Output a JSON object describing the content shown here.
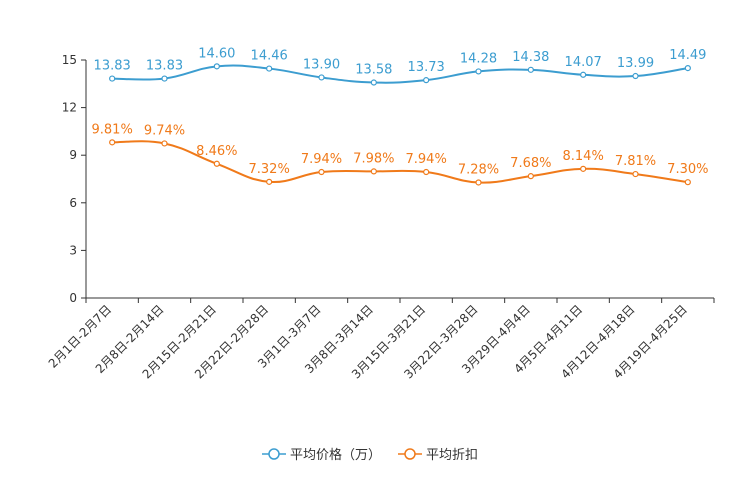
{
  "chart_data": {
    "type": "line",
    "title": "",
    "xlabel": "",
    "ylabel": "",
    "ylim": [
      0,
      15
    ],
    "yticks": [
      0,
      3,
      6,
      9,
      12,
      15
    ],
    "grid": false,
    "legend_position": "bottom",
    "categories": [
      "2月1日-2月7日",
      "2月8日-2月14日",
      "2月15日-2月21日",
      "2月22日-2月28日",
      "3月1日-3月7日",
      "3月8日-3月14日",
      "3月15日-3月21日",
      "3月22日-3月28日",
      "3月29日-4月4日",
      "4月5日-4月11日",
      "4月12日-4月18日",
      "4月19日-4月25日"
    ],
    "series": [
      {
        "name": "平均价格（万）",
        "color": "#3c9dd0",
        "values": [
          13.83,
          13.83,
          14.6,
          14.46,
          13.9,
          13.58,
          13.73,
          14.28,
          14.38,
          14.07,
          13.99,
          14.49
        ],
        "labels": [
          "13.83",
          "13.83",
          "14.60",
          "14.46",
          "13.90",
          "13.58",
          "13.73",
          "14.28",
          "14.38",
          "14.07",
          "13.99",
          "14.49"
        ]
      },
      {
        "name": "平均折扣",
        "color": "#f07a1a",
        "values": [
          9.81,
          9.74,
          8.46,
          7.32,
          7.94,
          7.98,
          7.94,
          7.28,
          7.68,
          8.14,
          7.81,
          7.3
        ],
        "labels": [
          "9.81%",
          "9.74%",
          "8.46%",
          "7.32%",
          "7.94%",
          "7.98%",
          "7.94%",
          "7.28%",
          "7.68%",
          "8.14%",
          "7.81%",
          "7.30%"
        ]
      }
    ]
  }
}
